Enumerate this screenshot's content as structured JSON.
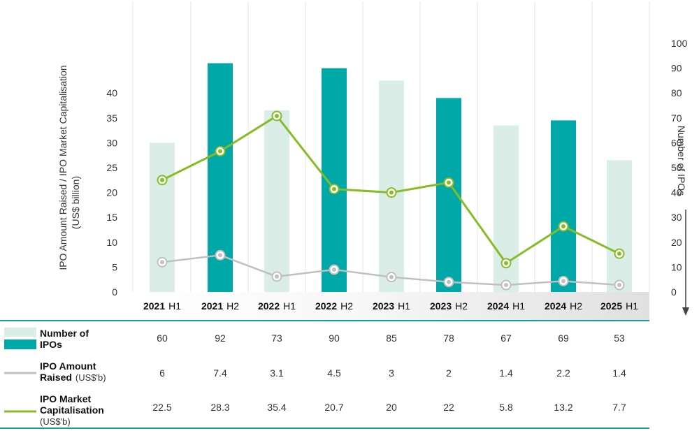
{
  "chart_data": {
    "type": "bar",
    "categories": [
      {
        "year": "2021",
        "half": "H1"
      },
      {
        "year": "2021",
        "half": "H2"
      },
      {
        "year": "2022",
        "half": "H1"
      },
      {
        "year": "2022",
        "half": "H2"
      },
      {
        "year": "2023",
        "half": "H1"
      },
      {
        "year": "2023",
        "half": "H2"
      },
      {
        "year": "2024",
        "half": "H1"
      },
      {
        "year": "2024",
        "half": "H2"
      },
      {
        "year": "2025",
        "half": "H1"
      }
    ],
    "series": [
      {
        "name": "Number of IPOs",
        "kind": "bar",
        "axis": "right",
        "values": [
          60,
          92,
          73,
          90,
          85,
          78,
          67,
          69,
          53
        ],
        "display": [
          "60",
          "92",
          "73",
          "90",
          "85",
          "78",
          "67",
          "69",
          "53"
        ],
        "colors": [
          "#daede7",
          "#00a8a8",
          "#daede7",
          "#00a8a8",
          "#daede7",
          "#00a8a8",
          "#daede7",
          "#00a8a8",
          "#daede7"
        ]
      },
      {
        "name": "IPO Amount Raised",
        "kind": "line",
        "axis": "left",
        "color": "#c0c0c0",
        "values": [
          6,
          7.4,
          3.1,
          4.5,
          3,
          2,
          1.4,
          2.2,
          1.4
        ],
        "display": [
          "6",
          "7.4",
          "3.1",
          "4.5",
          "3",
          "2",
          "1.4",
          "2.2",
          "1.4"
        ]
      },
      {
        "name": "IPO Market Capitalisation",
        "kind": "line",
        "axis": "left",
        "color": "#86bc25",
        "values": [
          22.5,
          28.3,
          35.4,
          20.7,
          20,
          22,
          5.8,
          13.2,
          7.7
        ],
        "display": [
          "22.5",
          "28.3",
          "35.4",
          "20.7",
          "20",
          "22",
          "5.8",
          "13.2",
          "7.7"
        ]
      }
    ],
    "y_left": {
      "label_line1": "IPO Amount Raised / IPO Market Capitalisation",
      "label_line2": "(US$ billion)",
      "range": [
        0,
        50
      ],
      "ticks": [
        "0",
        "5",
        "10",
        "15",
        "20",
        "25",
        "30",
        "35",
        "40"
      ]
    },
    "y_right": {
      "label": "Number of IPOs",
      "range": [
        0,
        100
      ],
      "ticks": [
        "0",
        "10",
        "20",
        "30",
        "40",
        "50",
        "60",
        "70",
        "80",
        "90",
        "100"
      ]
    },
    "legend_table": [
      {
        "line1_bold": "Number  of",
        "line2_bold": "IPOs",
        "line2_unit": "",
        "line3": ""
      },
      {
        "line1_bold": "IPO Amount",
        "line2_bold": "Raised",
        "line2_unit": "(US$'b)",
        "line3": ""
      },
      {
        "line1_bold": "IPO  Market",
        "line2_bold": "Capitalisation",
        "line2_unit": "",
        "line3": "(US$'b)"
      }
    ],
    "grid": "vertical",
    "colors": {
      "teal": "#00a8a8",
      "light": "#daede7",
      "green": "#86bc25",
      "grey": "#c0c0c0",
      "rule": "#1a9e96"
    }
  }
}
